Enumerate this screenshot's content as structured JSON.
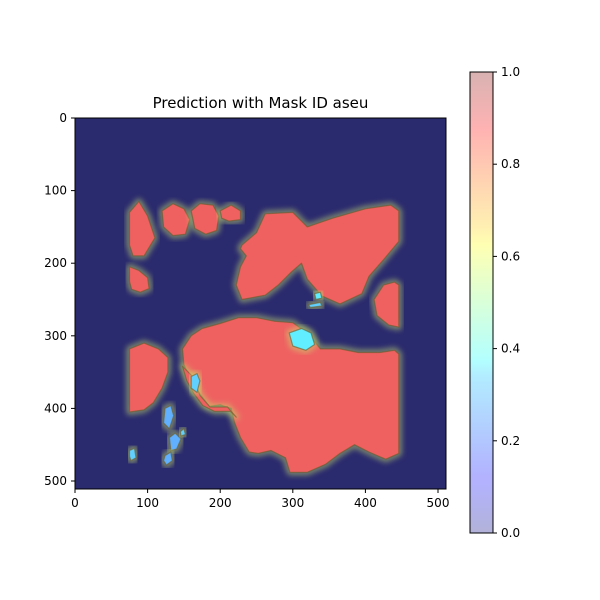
{
  "chart_data": {
    "type": "heatmap",
    "title": "Prediction with Mask ID aseu",
    "xlabel": "",
    "ylabel": "",
    "xlim": [
      0,
      511
    ],
    "ylim": [
      511,
      0
    ],
    "x_ticks": [
      0,
      100,
      200,
      300,
      400,
      500
    ],
    "y_ticks": [
      0,
      100,
      200,
      300,
      400,
      500
    ],
    "colorbar": {
      "min": 0.0,
      "max": 1.0,
      "ticks": [
        "0.0",
        "0.2",
        "0.4",
        "0.6",
        "0.8",
        "1.0"
      ],
      "colormap": "jet",
      "alpha": 0.3
    },
    "background_color": "#2a2a6e",
    "regions": [
      {
        "value": 0.9,
        "points": [
          [
            75,
            130
          ],
          [
            88,
            115
          ],
          [
            100,
            135
          ],
          [
            110,
            165
          ],
          [
            95,
            190
          ],
          [
            80,
            190
          ],
          [
            75,
            175
          ]
        ]
      },
      {
        "value": 0.9,
        "points": [
          [
            75,
            205
          ],
          [
            88,
            210
          ],
          [
            100,
            220
          ],
          [
            102,
            235
          ],
          [
            90,
            240
          ],
          [
            78,
            236
          ],
          [
            75,
            225
          ]
        ]
      },
      {
        "value": 0.9,
        "points": [
          [
            75,
            318
          ],
          [
            95,
            310
          ],
          [
            115,
            318
          ],
          [
            128,
            330
          ],
          [
            128,
            350
          ],
          [
            120,
            372
          ],
          [
            108,
            392
          ],
          [
            95,
            402
          ],
          [
            75,
            405
          ]
        ]
      },
      {
        "value": 0.9,
        "points": [
          [
            120,
            128
          ],
          [
            135,
            118
          ],
          [
            150,
            125
          ],
          [
            158,
            140
          ],
          [
            152,
            160
          ],
          [
            135,
            162
          ],
          [
            122,
            150
          ]
        ]
      },
      {
        "value": 0.9,
        "points": [
          [
            160,
            128
          ],
          [
            172,
            118
          ],
          [
            190,
            120
          ],
          [
            198,
            135
          ],
          [
            195,
            155
          ],
          [
            180,
            160
          ],
          [
            165,
            152
          ]
        ]
      },
      {
        "value": 0.9,
        "points": [
          [
            200,
            128
          ],
          [
            215,
            120
          ],
          [
            228,
            128
          ],
          [
            228,
            140
          ],
          [
            212,
            142
          ],
          [
            202,
            138
          ]
        ]
      },
      {
        "value": 0.9,
        "points": [
          [
            230,
            175
          ],
          [
            250,
            158
          ],
          [
            262,
            132
          ],
          [
            300,
            130
          ],
          [
            320,
            150
          ],
          [
            355,
            138
          ],
          [
            400,
            125
          ],
          [
            435,
            120
          ],
          [
            446,
            128
          ],
          [
            446,
            170
          ],
          [
            425,
            195
          ],
          [
            405,
            218
          ],
          [
            395,
            242
          ],
          [
            365,
            256
          ],
          [
            340,
            245
          ],
          [
            320,
            222
          ],
          [
            312,
            200
          ],
          [
            298,
            212
          ],
          [
            280,
            230
          ],
          [
            262,
            244
          ],
          [
            230,
            250
          ],
          [
            222,
            230
          ],
          [
            228,
            205
          ],
          [
            236,
            190
          ],
          [
            228,
            180
          ]
        ]
      },
      {
        "value": 0.9,
        "points": [
          [
            412,
            250
          ],
          [
            425,
            230
          ],
          [
            440,
            226
          ],
          [
            446,
            230
          ],
          [
            446,
            288
          ],
          [
            432,
            285
          ],
          [
            416,
            272
          ]
        ]
      },
      {
        "value": 0.9,
        "points": [
          [
            148,
            318
          ],
          [
            160,
            300
          ],
          [
            175,
            290
          ],
          [
            200,
            283
          ],
          [
            225,
            275
          ],
          [
            250,
            275
          ],
          [
            275,
            280
          ],
          [
            300,
            282
          ],
          [
            320,
            296
          ],
          [
            338,
            318
          ],
          [
            365,
            318
          ],
          [
            390,
            323
          ],
          [
            420,
            323
          ],
          [
            440,
            320
          ],
          [
            446,
            325
          ],
          [
            446,
            462
          ],
          [
            428,
            470
          ],
          [
            405,
            460
          ],
          [
            385,
            450
          ],
          [
            365,
            462
          ],
          [
            345,
            477
          ],
          [
            320,
            488
          ],
          [
            296,
            488
          ],
          [
            290,
            468
          ],
          [
            270,
            458
          ],
          [
            252,
            462
          ],
          [
            240,
            460
          ],
          [
            228,
            440
          ],
          [
            220,
            420
          ],
          [
            215,
            400
          ],
          [
            200,
            395
          ],
          [
            185,
            397
          ],
          [
            172,
            380
          ],
          [
            160,
            360
          ],
          [
            150,
            340
          ]
        ]
      },
      {
        "value": 0.9,
        "points": [
          [
            148,
            342
          ],
          [
            162,
            356
          ],
          [
            172,
            382
          ],
          [
            186,
            398
          ],
          [
            210,
            398
          ],
          [
            222,
            412
          ],
          [
            214,
            404
          ],
          [
            192,
            404
          ],
          [
            176,
            396
          ],
          [
            164,
            380
          ],
          [
            154,
            362
          ]
        ]
      },
      {
        "value": 0.35,
        "points": [
          [
            295,
            296
          ],
          [
            312,
            290
          ],
          [
            325,
            296
          ],
          [
            330,
            312
          ],
          [
            318,
            320
          ],
          [
            300,
            314
          ]
        ]
      },
      {
        "value": 0.35,
        "points": [
          [
            330,
            242
          ],
          [
            338,
            240
          ],
          [
            340,
            248
          ],
          [
            332,
            250
          ]
        ]
      },
      {
        "value": 0.3,
        "points": [
          [
            322,
            257
          ],
          [
            338,
            254
          ],
          [
            340,
            259
          ],
          [
            324,
            261
          ]
        ]
      },
      {
        "value": 0.3,
        "points": [
          [
            160,
            356
          ],
          [
            168,
            352
          ],
          [
            172,
            362
          ],
          [
            168,
            378
          ],
          [
            160,
            372
          ]
        ]
      },
      {
        "value": 0.25,
        "points": [
          [
            124,
            400
          ],
          [
            132,
            396
          ],
          [
            136,
            410
          ],
          [
            130,
            428
          ],
          [
            122,
            420
          ]
        ]
      },
      {
        "value": 0.25,
        "points": [
          [
            130,
            440
          ],
          [
            138,
            434
          ],
          [
            146,
            442
          ],
          [
            140,
            456
          ],
          [
            132,
            458
          ]
        ]
      },
      {
        "value": 0.25,
        "points": [
          [
            124,
            465
          ],
          [
            132,
            460
          ],
          [
            134,
            472
          ],
          [
            126,
            478
          ],
          [
            122,
            472
          ]
        ]
      },
      {
        "value": 0.3,
        "points": [
          [
            145,
            432
          ],
          [
            150,
            428
          ],
          [
            152,
            436
          ],
          [
            146,
            438
          ]
        ]
      },
      {
        "value": 0.3,
        "points": [
          [
            75,
            458
          ],
          [
            82,
            455
          ],
          [
            84,
            468
          ],
          [
            77,
            472
          ],
          [
            75,
            466
          ]
        ]
      }
    ]
  }
}
